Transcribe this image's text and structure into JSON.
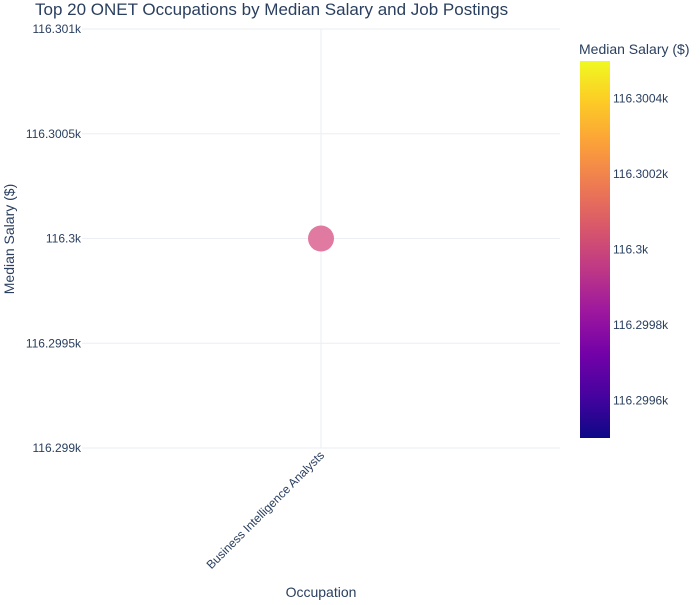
{
  "chart_data": {
    "type": "scatter",
    "title": "Top 20 ONET Occupations by Median Salary and Job Postings",
    "xlabel": "Occupation",
    "ylabel": "Median Salary ($)",
    "categories": [
      "Business Intelligence Analysts"
    ],
    "series": [
      {
        "values": [
          116300
        ]
      }
    ],
    "ylim": [
      116299,
      116301
    ],
    "yticks": [
      {
        "value": 116299,
        "label": "116.299k"
      },
      {
        "value": 116299.5,
        "label": "116.2995k"
      },
      {
        "value": 116300,
        "label": "116.3k"
      },
      {
        "value": 116300.5,
        "label": "116.3005k"
      },
      {
        "value": 116301,
        "label": "116.301k"
      }
    ],
    "grid": true,
    "colorbar": {
      "title": "Median Salary ($)",
      "range": [
        116299.5,
        116300.5
      ],
      "ticks": [
        {
          "value": 116299.6,
          "label": "116.2996k"
        },
        {
          "value": 116299.8,
          "label": "116.2998k"
        },
        {
          "value": 116300.0,
          "label": "116.3k"
        },
        {
          "value": 116300.2,
          "label": "116.3002k"
        },
        {
          "value": 116300.4,
          "label": "116.3004k"
        }
      ],
      "colorscale": [
        "#0d0887",
        "#46039f",
        "#7201a8",
        "#9c179e",
        "#bd3786",
        "#d8576b",
        "#ed7953",
        "#fb9f3a",
        "#fdca26",
        "#f0f921"
      ]
    },
    "marker_color": "#e07aa0"
  },
  "colors": {
    "text": "#2a3f5f",
    "grid": "#ebeef2"
  }
}
